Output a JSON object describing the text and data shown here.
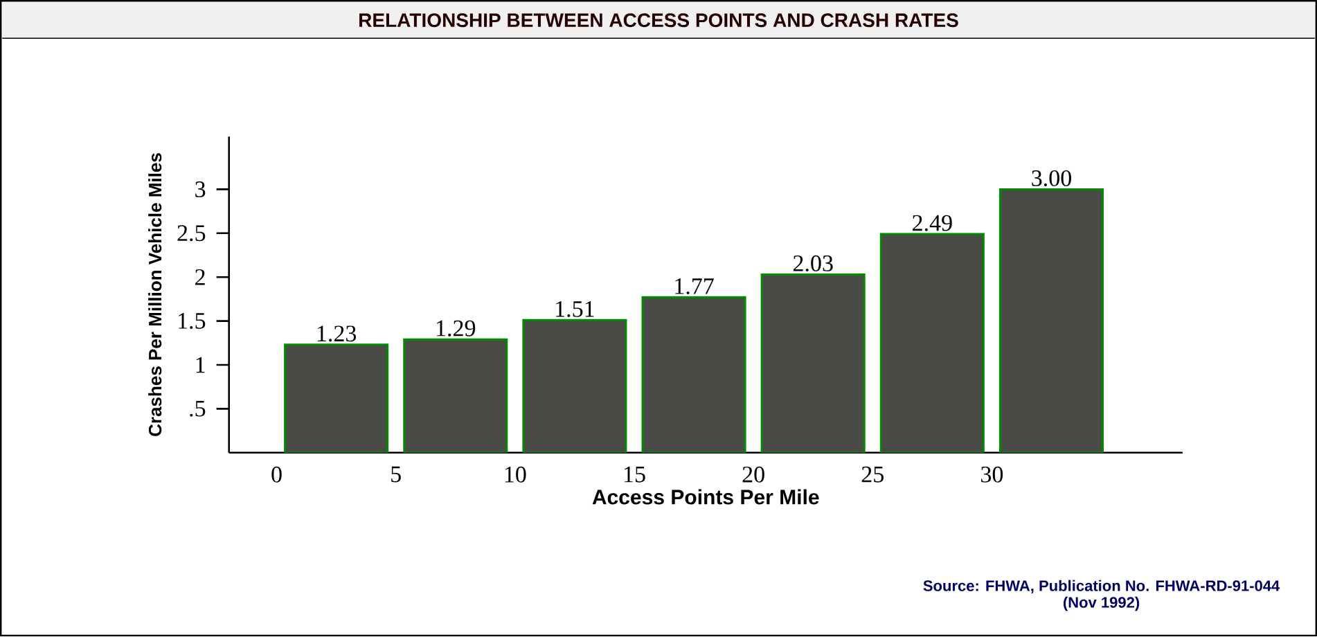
{
  "chart_data": {
    "type": "histogram",
    "title": "RELATIONSHIP BETWEEN ACCESS POINTS AND CRASH RATES",
    "xlabel": "Access Points Per Mile",
    "ylabel": "Crashes Per Million Vehicle Miles",
    "bins": [
      0,
      5,
      10,
      15,
      20,
      25,
      30,
      35
    ],
    "values": [
      1.23,
      1.29,
      1.51,
      1.77,
      2.03,
      2.49,
      3.0
    ],
    "value_labels": [
      "1.23",
      "1.29",
      "1.51",
      "1.77",
      "2.03",
      "2.49",
      "3.00"
    ],
    "color": "#4a4a47",
    "xlim": [
      -2,
      38
    ],
    "xticks": [
      0,
      5,
      10,
      15,
      20,
      25,
      30
    ],
    "ylim": [
      0,
      3.6
    ],
    "yticks": [
      {
        "value": 0.5,
        "label": ".5"
      },
      1,
      1.5,
      2,
      2.5,
      3
    ],
    "annotations": [
      "Source: FHWA, Publication No. FHWA-RD-91-044",
      "(Nov 1992)"
    ]
  }
}
